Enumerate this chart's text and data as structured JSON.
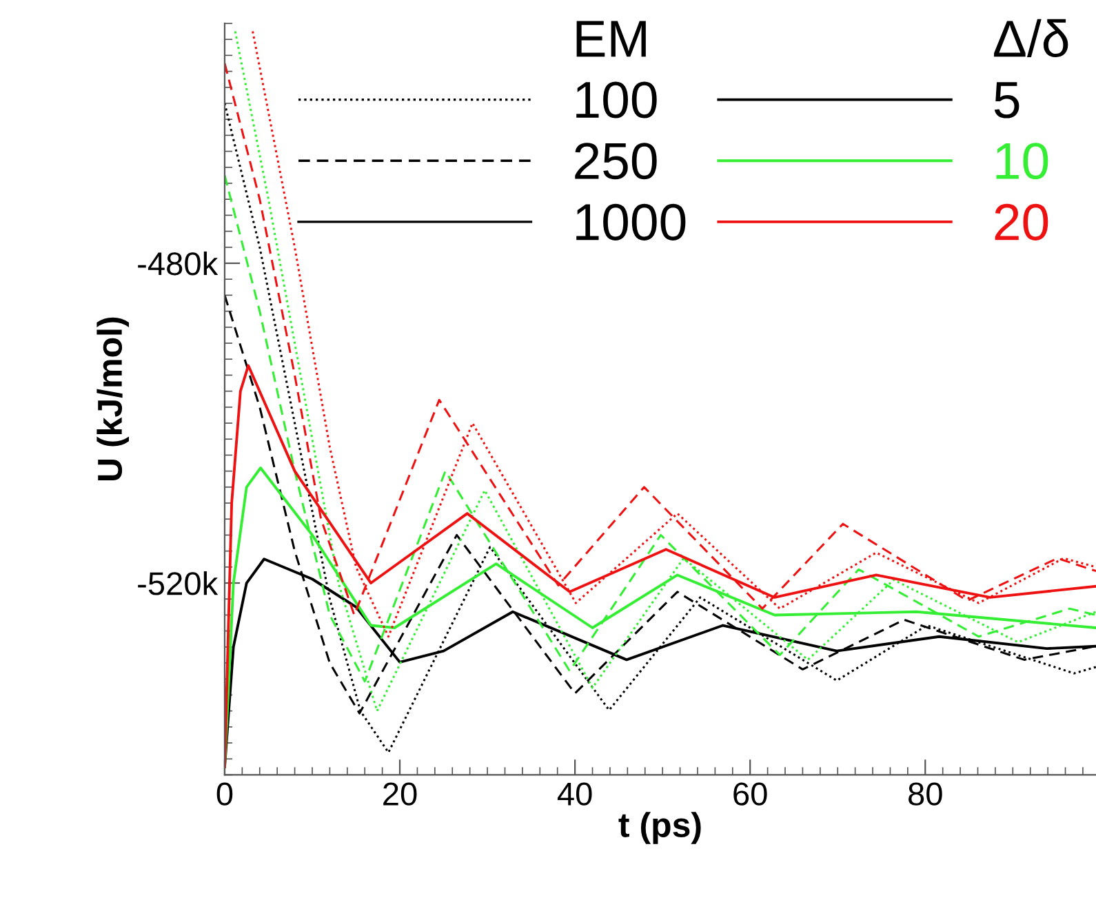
{
  "chart_data": {
    "type": "line",
    "xlabel": "t (ps)",
    "ylabel": "U (kJ/mol)",
    "xlim": [
      0,
      99.5
    ],
    "xticks": [
      0,
      20,
      40,
      60,
      80
    ],
    "ylim": [
      -544,
      -450
    ],
    "yticks": [
      {
        "value": -480,
        "label": "-480k"
      },
      {
        "value": -520,
        "label": "-520k"
      }
    ],
    "grid": false,
    "marker": "none",
    "annotations": [
      "EM",
      "100",
      "250",
      "1000",
      "Δ/δ",
      "5",
      "10",
      "20"
    ],
    "series": [
      {
        "color": "#000000",
        "line_style": "dotted",
        "x": [
          0,
          4,
          8,
          12,
          15.5,
          18.7,
          30.3,
          43.9,
          54.3,
          69.9,
          80.2,
          97,
          99.5
        ],
        "values": [
          -460,
          -478,
          -500,
          -522,
          -536,
          -541.2,
          -515.5,
          -535.9,
          -521.8,
          -532.2,
          -525.3,
          -531.3,
          -530.5
        ]
      },
      {
        "color": "#000000",
        "line_style": "dashed",
        "x": [
          0,
          4,
          8,
          12,
          15.4,
          26.5,
          40,
          51.7,
          66,
          77.6,
          91.3,
          99.5
        ],
        "values": [
          -484,
          -498,
          -516,
          -530,
          -536.3,
          -514,
          -533.8,
          -521.1,
          -530.8,
          -524.6,
          -529.6,
          -527.9
        ]
      },
      {
        "color": "#000000",
        "line_style": "solid",
        "x": [
          0,
          1,
          2.5,
          4.5,
          10,
          15,
          20,
          25,
          32.9,
          45.9,
          56.9,
          69.9,
          81.6,
          93.9,
          99.5
        ],
        "values": [
          -543,
          -528,
          -520,
          -517,
          -519.5,
          -523,
          -529.9,
          -528.5,
          -523.6,
          -529.6,
          -525.3,
          -528.5,
          -526.7,
          -528.2,
          -527.9
        ]
      },
      {
        "color": "#33ee33",
        "line_style": "dotted",
        "x": [
          1.2,
          5,
          9,
          13,
          17.4,
          29.7,
          42,
          52.4,
          66.6,
          76.4,
          90.6,
          99.5
        ],
        "values": [
          -451,
          -472,
          -496,
          -520,
          -536,
          -508.4,
          -533.1,
          -516.9,
          -529.6,
          -519.6,
          -527.4,
          -523.6
        ]
      },
      {
        "color": "#33ee33",
        "line_style": "dashed",
        "x": [
          0,
          4,
          8,
          12,
          16,
          25.2,
          39.4,
          49.8,
          63.4,
          72.4,
          86.1,
          96.5,
          99.5
        ],
        "values": [
          -469,
          -486,
          -506,
          -524,
          -532.3,
          -506,
          -531,
          -514,
          -529,
          -518.3,
          -526.7,
          -523.2,
          -524
        ]
      },
      {
        "color": "#33ee33",
        "line_style": "solid",
        "x": [
          0,
          1,
          2.5,
          4.1,
          10,
          16.7,
          19.4,
          31,
          42,
          51.7,
          62.8,
          79,
          99.5
        ],
        "values": [
          -543,
          -520,
          -508,
          -505.6,
          -514,
          -525.3,
          -525.6,
          -517.6,
          -525.6,
          -519,
          -524,
          -523.6,
          -525.6
        ]
      },
      {
        "color": "#ee1111",
        "line_style": "dotted",
        "x": [
          3.2,
          8,
          12,
          15,
          18.7,
          28.3,
          40.1,
          51.7,
          63.4,
          74.4,
          86.1,
          95.8,
          99.5
        ],
        "values": [
          -451,
          -478,
          -503,
          -518,
          -526.7,
          -500,
          -522.5,
          -511.3,
          -523.2,
          -516.2,
          -522.5,
          -516.9,
          -518
        ]
      },
      {
        "color": "#ee1111",
        "line_style": "dashed",
        "x": [
          0,
          4,
          8,
          11,
          14.8,
          24.5,
          38.1,
          47.9,
          61.4,
          70.6,
          84.8,
          95.1,
          99.5
        ],
        "values": [
          -455,
          -472,
          -494,
          -512,
          -524,
          -497.1,
          -520.3,
          -508,
          -523.2,
          -512.6,
          -522.2,
          -516.9,
          -518.5
        ]
      },
      {
        "color": "#ee1111",
        "line_style": "solid",
        "x": [
          0,
          0.8,
          1.8,
          2.7,
          8,
          16.7,
          27.7,
          39.4,
          50.4,
          62.8,
          74.4,
          87.4,
          99.5
        ],
        "values": [
          -543,
          -510,
          -496,
          -492.8,
          -506,
          -520,
          -511.3,
          -521.1,
          -515.8,
          -521.8,
          -519,
          -521.8,
          -520.4
        ]
      }
    ]
  }
}
